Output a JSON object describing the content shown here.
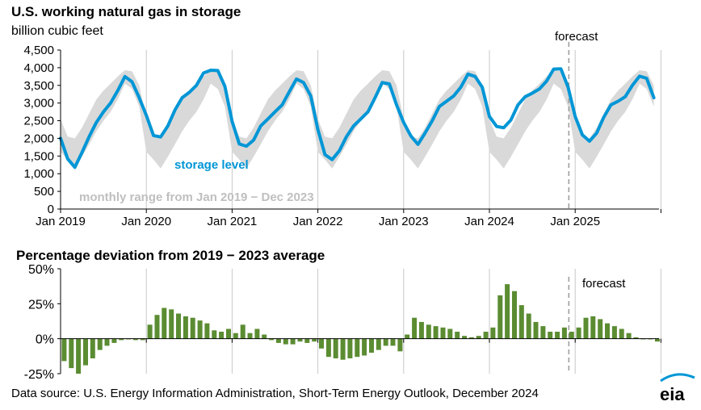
{
  "colors": {
    "storage_line": "#0096d6",
    "range_band": "#d9d9d9",
    "bars": "#5b8c32",
    "gridline": "#c8c8c8",
    "forecast_line": "#9a9a9a",
    "band_label": "#bfbfbf",
    "eia_blue": "#0096d6"
  },
  "source_text": "Data source: U.S. Energy Information Administration, Short-Term Energy Outlook, December 2024",
  "logo_text": "eia",
  "chart_data": [
    {
      "type": "line",
      "title": "U.S. working natural gas in storage",
      "subtitle": "billion cubic feet",
      "forecast_label": "forecast",
      "forecast_start": "Dec 2024",
      "series_label": "storage level",
      "band_label": "monthly range from Jan 2019 − Dec 2023",
      "x_start": "Jan 2019",
      "x_tick_labels": [
        "Jan 2019",
        "Jan 2020",
        "Jan 2021",
        "Jan 2022",
        "Jan 2023",
        "Jan 2024",
        "Jan 2025"
      ],
      "y_tick_labels": [
        "0",
        "500",
        "1,000",
        "1,500",
        "2,000",
        "2,500",
        "3,000",
        "3,500",
        "4,000",
        "4,500"
      ],
      "ylim": [
        0,
        4500
      ],
      "grid": "vertical",
      "series": [
        {
          "name": "storage level",
          "values": [
            2000,
            1420,
            1180,
            1600,
            2050,
            2450,
            2750,
            3000,
            3350,
            3750,
            3600,
            3150,
            2650,
            2080,
            2040,
            2350,
            2800,
            3150,
            3300,
            3500,
            3850,
            3930,
            3920,
            3470,
            2480,
            1840,
            1780,
            1950,
            2350,
            2550,
            2750,
            2950,
            3320,
            3680,
            3580,
            3200,
            2250,
            1540,
            1400,
            1650,
            2050,
            2350,
            2550,
            2750,
            3150,
            3580,
            3540,
            2950,
            2450,
            2070,
            1830,
            2150,
            2500,
            2900,
            3050,
            3200,
            3450,
            3820,
            3750,
            3450,
            2620,
            2340,
            2300,
            2520,
            2950,
            3180,
            3280,
            3400,
            3620,
            3960,
            3970,
            3450,
            2620,
            2100,
            1920,
            2150,
            2600,
            2950,
            3050,
            3180,
            3500,
            3760,
            3700,
            3150
          ]
        }
      ],
      "band": {
        "min": [
          1620,
          1400,
          1150,
          1480,
          1830,
          2200,
          2500,
          2750,
          3100,
          3550,
          3400,
          2900
        ],
        "max": [
          2550,
          2050,
          2000,
          2300,
          2700,
          3100,
          3350,
          3550,
          3750,
          3930,
          3900,
          3500
        ]
      }
    },
    {
      "type": "bar",
      "title": "Percentage deviation from 2019 − 2023 average",
      "forecast_label": "forecast",
      "forecast_start": "Dec 2024",
      "x_start": "Jan 2019",
      "y_tick_labels": [
        "-25%",
        "0%",
        "25%",
        "50%"
      ],
      "ylim": [
        -25,
        50
      ],
      "grid": "vertical",
      "values": [
        -16,
        -21,
        -25,
        -19,
        -14,
        -8,
        -5,
        -3,
        -1,
        0,
        -1,
        -1,
        10,
        17,
        22,
        21,
        18,
        16,
        15,
        13,
        11,
        6,
        5,
        7,
        4,
        10,
        4,
        7,
        3,
        -1,
        -3,
        -4,
        -4,
        -2,
        -3,
        -2,
        -7,
        -13,
        -14,
        -15,
        -14,
        -13,
        -12,
        -10,
        -8,
        -5,
        -5,
        -9,
        3,
        15,
        12,
        10,
        9,
        8,
        7,
        5,
        2,
        1,
        2,
        5,
        8,
        31,
        39,
        34,
        24,
        18,
        12,
        9,
        5,
        5,
        8,
        5,
        8,
        15,
        16,
        14,
        11,
        9,
        7,
        4,
        1,
        0,
        0,
        -2
      ]
    }
  ]
}
